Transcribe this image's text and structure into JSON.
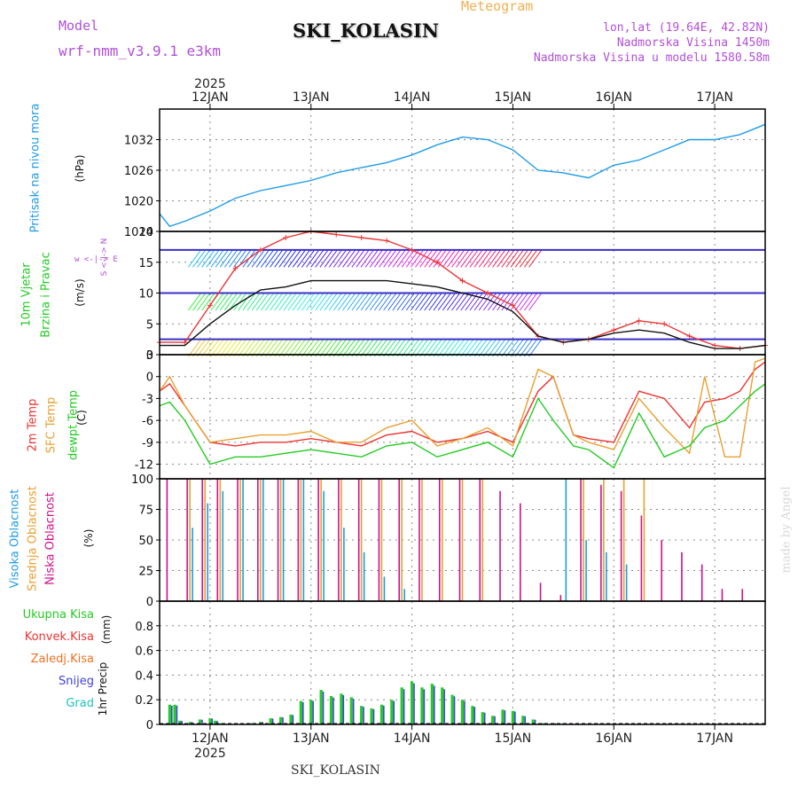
{
  "header": {
    "model_label": "Model",
    "model_name": "wrf-nmm_v3.9.1 e3km",
    "title": "SKI_KOLASIN",
    "subtitle": "Meteogram",
    "coords": "lon,lat (19.64E, 42.82N)",
    "altitude": "Nadmorska Visina 1450m",
    "model_altitude": "Nadmorska Visina u modelu 1580.58m",
    "footer_title": "SKI_KOLASIN",
    "watermark": "made by Angel"
  },
  "colors": {
    "purple": "#b04fd8",
    "blue": "#1e9be8",
    "green": "#22cc22",
    "red": "#ee3333",
    "orange": "#e8a030",
    "magenta": "#d0108a",
    "orange2": "#f07020",
    "violet": "#4040e0",
    "teal": "#20c0c0",
    "black": "#111111"
  },
  "chart_data": [
    {
      "id": "pressure",
      "type": "line",
      "ylabel_line1": "Pritisak na nivou mora",
      "ylabel_units": "(hPa)",
      "ylim": [
        1014,
        1038
      ],
      "yticks": [
        "1014",
        "1020",
        "1026",
        "1032"
      ],
      "x_days": [
        0,
        0.1,
        0.25,
        0.5,
        0.75,
        1.0,
        1.25,
        1.5,
        1.75,
        2.0,
        2.25,
        2.5,
        2.75,
        3.0,
        3.25,
        3.5,
        3.75,
        4.0,
        4.25,
        4.5,
        4.75,
        5.0,
        5.25,
        5.5,
        5.75,
        6.0
      ],
      "x_hours_note": "x in days since 11 JAN 12:00",
      "series": [
        {
          "name": "MSLP",
          "values": [
            1017.5,
            1015,
            1016,
            1018,
            1020.5,
            1022,
            1023,
            1024,
            1025.5,
            1026.5,
            1027.5,
            1029,
            1031,
            1032.5,
            1032,
            1030,
            1026,
            1025.5,
            1024.5,
            1027,
            1028,
            1030,
            1032,
            1032,
            1033,
            1035
          ]
        }
      ]
    },
    {
      "id": "wind",
      "type": "line",
      "ylabel_line1": "10m Vjetar",
      "ylabel_line2": "Brzina i Pravac",
      "ylabel_units": "(m/s)",
      "compass": "w <-|-> E",
      "compass_ns": "S <-|-> N",
      "ylim": [
        0,
        20
      ],
      "yticks": [
        "0",
        "5",
        "10",
        "15",
        "20"
      ],
      "x_days": [
        0,
        0.25,
        0.5,
        0.75,
        1.0,
        1.25,
        1.5,
        1.75,
        2.0,
        2.25,
        2.5,
        2.75,
        3.0,
        3.25,
        3.5,
        3.75,
        4.0,
        4.25,
        4.5,
        4.75,
        5.0,
        5.25,
        5.5,
        5.75,
        6.0
      ],
      "series": [
        {
          "name": "Gust",
          "values": [
            2,
            2,
            8,
            14,
            17,
            19,
            20,
            19.5,
            19,
            18.5,
            17,
            15,
            12,
            10,
            8,
            3,
            2,
            2.5,
            4,
            5.5,
            5,
            3,
            1.5,
            1,
            1.5
          ]
        },
        {
          "name": "Speed",
          "values": [
            1.5,
            1.5,
            5,
            8,
            10.5,
            11,
            12,
            12,
            12,
            12,
            11.5,
            11,
            10,
            9,
            7,
            3,
            2,
            2.5,
            3.5,
            4,
            3.5,
            2,
            1,
            1,
            1.5
          ]
        }
      ]
    },
    {
      "id": "temperature",
      "type": "line",
      "ylabel_line1": "2m Temp",
      "ylabel_line2": "SFC Temp",
      "ylabel_line3": "dewpt Temp",
      "ylabel_units": "(C)",
      "ylim": [
        -14,
        3
      ],
      "yticks": [
        "-12",
        "-9",
        "-6",
        "-3",
        "0",
        "3"
      ],
      "x_days": [
        0,
        0.1,
        0.25,
        0.5,
        0.75,
        1.0,
        1.25,
        1.5,
        1.75,
        2.0,
        2.25,
        2.5,
        2.75,
        3.0,
        3.25,
        3.5,
        3.75,
        3.9,
        4.1,
        4.25,
        4.5,
        4.75,
        5.0,
        5.25,
        5.4,
        5.6,
        5.75,
        5.9,
        6.0
      ],
      "series": [
        {
          "name": "2m Temp",
          "values": [
            -2,
            -1,
            -4,
            -9,
            -9.5,
            -9,
            -9,
            -8.5,
            -9,
            -9.5,
            -8,
            -7.5,
            -9,
            -8.5,
            -7.5,
            -9,
            -2,
            0,
            -8,
            -8.5,
            -9,
            -2,
            -3,
            -7,
            -3.5,
            -3,
            -2,
            1,
            2
          ]
        },
        {
          "name": "SFC Temp",
          "values": [
            -2,
            0,
            -4,
            -9,
            -8.5,
            -8,
            -8,
            -7.5,
            -9,
            -9,
            -7,
            -6,
            -9.5,
            -8.5,
            -7,
            -9.5,
            1,
            0,
            -8,
            -9,
            -10,
            -3,
            -7,
            -10.5,
            0,
            -11,
            -11,
            2,
            2.5
          ]
        },
        {
          "name": "dewpt Temp",
          "values": [
            -4,
            -3.5,
            -6,
            -12,
            -11,
            -11,
            -10.5,
            -10,
            -10.5,
            -11,
            -9.5,
            -9,
            -11,
            -10,
            -9,
            -11,
            -3,
            -6,
            -9.5,
            -10,
            -12.5,
            -5,
            -11,
            -9.5,
            -7,
            -6,
            -4,
            -2,
            -1
          ]
        }
      ]
    },
    {
      "id": "cloud",
      "type": "bar",
      "ylabel_line1": "Visoka Oblacnost",
      "ylabel_line2": "Srednja Oblacnost",
      "ylabel_line3": "Niska Oblacnost",
      "ylabel_units": "(%)",
      "ylim": [
        0,
        100
      ],
      "yticks": [
        "0",
        "25",
        "50",
        "75",
        "100"
      ],
      "x_days": [
        0.1,
        0.3,
        0.45,
        0.6,
        0.8,
        1.0,
        1.2,
        1.4,
        1.6,
        1.8,
        2.0,
        2.2,
        2.4,
        2.6,
        2.8,
        3.0,
        3.2,
        3.4,
        3.6,
        3.8,
        4.0,
        4.2,
        4.4,
        4.6,
        4.8,
        5.0,
        5.2,
        5.4,
        5.6,
        5.8
      ],
      "series": [
        {
          "name": "Niska",
          "values": [
            100,
            100,
            100,
            100,
            100,
            100,
            100,
            100,
            100,
            100,
            100,
            100,
            100,
            100,
            100,
            100,
            100,
            90,
            80,
            15,
            5,
            100,
            95,
            90,
            70,
            50,
            40,
            30,
            10,
            10
          ]
        },
        {
          "name": "Srednja",
          "values": [
            0,
            100,
            100,
            100,
            100,
            100,
            100,
            100,
            100,
            100,
            100,
            100,
            100,
            100,
            100,
            100,
            100,
            0,
            0,
            0,
            0,
            100,
            100,
            100,
            100,
            0,
            0,
            0,
            0,
            0
          ]
        },
        {
          "name": "Visoka",
          "values": [
            0,
            60,
            80,
            90,
            100,
            100,
            100,
            100,
            90,
            60,
            40,
            20,
            10,
            0,
            0,
            0,
            0,
            0,
            0,
            0,
            100,
            50,
            40,
            30,
            0,
            0,
            0,
            0,
            0,
            0
          ]
        }
      ]
    },
    {
      "id": "precip",
      "type": "bar",
      "ylabel_line1": "1hr Precip",
      "ylabel_units": "(mm)",
      "legend": [
        "Ukupna Kisa",
        "Konvek.Kisa",
        "Zaledj.Kisa",
        "Snijeg",
        "Grad"
      ],
      "ylim": [
        0,
        1.0
      ],
      "yticks": [
        "0",
        "0.2",
        "0.4",
        "0.6",
        "0.8"
      ],
      "x_days": [
        0.1,
        0.15,
        0.2,
        0.3,
        0.4,
        0.5,
        0.55,
        0.6,
        0.9,
        1.0,
        1.1,
        1.2,
        1.3,
        1.4,
        1.5,
        1.6,
        1.7,
        1.8,
        1.9,
        2.0,
        2.1,
        2.2,
        2.3,
        2.4,
        2.5,
        2.6,
        2.7,
        2.8,
        2.9,
        3.0,
        3.1,
        3.2,
        3.3,
        3.4,
        3.5,
        3.6,
        3.7,
        3.8,
        3.9,
        4.0
      ],
      "values": [
        0.16,
        0.16,
        0.03,
        0.02,
        0.04,
        0.05,
        0.03,
        0.01,
        0.01,
        0.02,
        0.05,
        0.06,
        0.08,
        0.19,
        0.2,
        0.28,
        0.23,
        0.25,
        0.22,
        0.15,
        0.13,
        0.16,
        0.2,
        0.3,
        0.35,
        0.3,
        0.33,
        0.3,
        0.24,
        0.2,
        0.15,
        0.1,
        0.07,
        0.12,
        0.11,
        0.07,
        0.04,
        0.01,
        0.01,
        0.01
      ]
    }
  ],
  "x_axis": {
    "year": "2025",
    "day_labels": [
      "12JAN",
      "13JAN",
      "14JAN",
      "15JAN",
      "16JAN",
      "17JAN"
    ],
    "day_offsets": [
      0.5,
      1.5,
      2.5,
      3.5,
      4.5,
      5.5
    ],
    "total_days": 6
  }
}
